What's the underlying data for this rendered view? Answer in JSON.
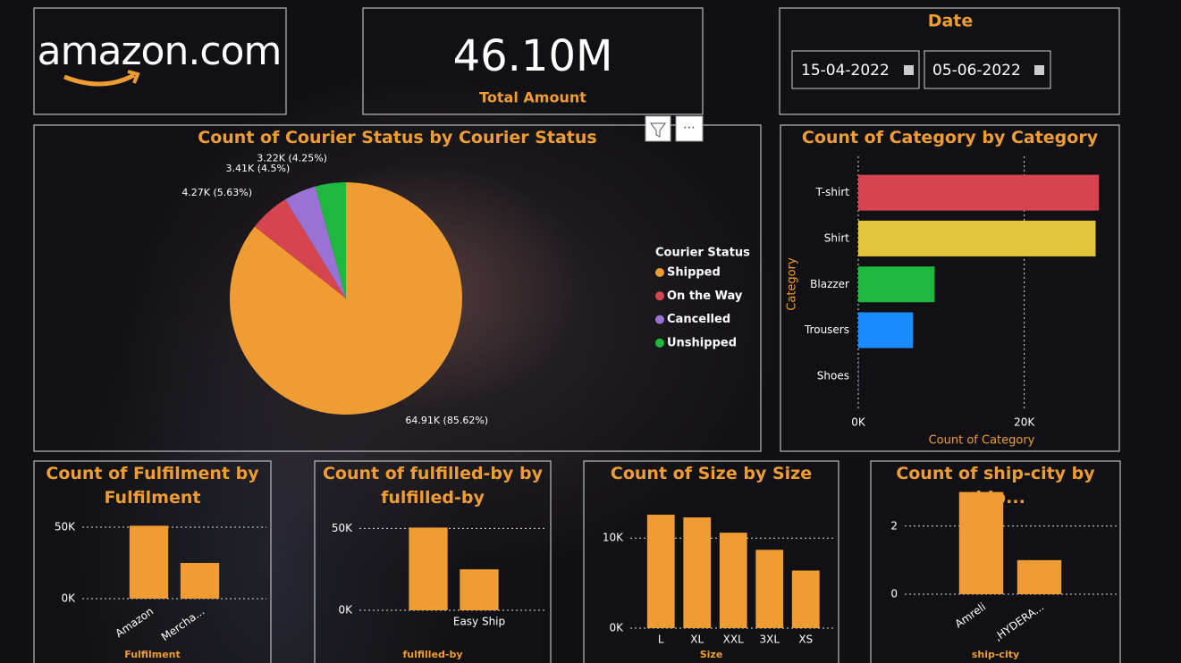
{
  "logo": {
    "text": "amazon.com"
  },
  "kpi": {
    "value": "46.10M",
    "label": "Total Amount"
  },
  "date_filter": {
    "title": "Date",
    "start": "15-04-2022",
    "end": "05-06-2022"
  },
  "chart_data": [
    {
      "type": "pie",
      "title": "Count of Courier Status by Courier Status",
      "legend_title": "Courier Status",
      "categories": [
        "Shipped",
        "On the Way",
        "Cancelled",
        "Unshipped"
      ],
      "values": [
        64910,
        4270,
        3410,
        3220
      ],
      "value_labels": [
        "64.91K (85.62%)",
        "4.27K (5.63%)",
        "3.41K (4.5%)",
        "3.22K (4.25%)"
      ],
      "colors": [
        "#ef9c33",
        "#d6454f",
        "#9a72d4",
        "#1fb83f"
      ]
    },
    {
      "type": "hbar",
      "title": "Count of Category by Category",
      "xlabel": "Count of Category",
      "ylabel": "Category",
      "categories": [
        "T-shirt",
        "Shirt",
        "Blazzer",
        "Trousers",
        "Shoes"
      ],
      "values": [
        29000,
        28600,
        9200,
        6600,
        30
      ],
      "colors": [
        "#d6454f",
        "#e3c33a",
        "#1fb83f",
        "#1a8cff",
        "#9a72d4"
      ],
      "xlim": [
        0,
        29300
      ],
      "xticks": [
        {
          "value": 0,
          "label": "0K"
        },
        {
          "value": 20000,
          "label": "20K"
        }
      ],
      "grid": true
    },
    {
      "type": "bar",
      "title": "Count of Fulfilment by Fulfilment",
      "xlabel": "Fulfilment",
      "categories": [
        "Amazon",
        "Mercha..."
      ],
      "values": [
        51000,
        25000
      ],
      "color": "#ef9c33",
      "ylim": [
        0,
        60000
      ],
      "yticks": [
        {
          "value": 0,
          "label": "0K"
        },
        {
          "value": 50000,
          "label": "50K"
        }
      ],
      "grid": true
    },
    {
      "type": "bar",
      "title": "Count of fulfilled-by by fulfilled-by",
      "xlabel": "fulfilled-by",
      "categories": [
        null,
        "Easy Ship"
      ],
      "values": [
        50500,
        25000
      ],
      "color": "#ef9c33",
      "ylim": [
        0,
        60000
      ],
      "yticks": [
        {
          "value": 0,
          "label": "0K"
        },
        {
          "value": 50000,
          "label": "50K"
        }
      ],
      "grid": true
    },
    {
      "type": "bar",
      "title": "Count of Size by Size",
      "xlabel": "Size",
      "categories": [
        "L",
        "XL",
        "XXL",
        "3XL",
        "XS"
      ],
      "values": [
        12600,
        12300,
        10600,
        8700,
        6400
      ],
      "color": "#ef9c33",
      "ylim": [
        0,
        13000
      ],
      "yticks": [
        {
          "value": 0,
          "label": "0K"
        },
        {
          "value": 10000,
          "label": "10K"
        }
      ],
      "grid": true
    },
    {
      "type": "bar",
      "title": "Count of ship-city by ship...",
      "xlabel": "ship-city",
      "categories": [
        "Amreli",
        ",HYDERA..."
      ],
      "values": [
        3,
        1
      ],
      "color": "#ef9c33",
      "ylim": [
        0,
        3.2
      ],
      "yticks": [
        0,
        2
      ],
      "grid": true
    }
  ]
}
